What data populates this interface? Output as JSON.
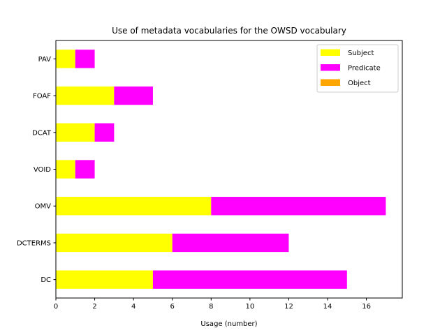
{
  "chart_data": {
    "type": "bar",
    "orientation": "horizontal",
    "stacked": true,
    "title": "Use of metadata vocabularies for the OWSD vocabulary",
    "xlabel": "Usage (number)",
    "ylabel": "",
    "categories": [
      "DC",
      "DCTERMS",
      "OMV",
      "VOID",
      "DCAT",
      "FOAF",
      "PAV"
    ],
    "series": [
      {
        "name": "Subject",
        "color": "#ffff00",
        "values": [
          5,
          6,
          8,
          1,
          2,
          3,
          1
        ]
      },
      {
        "name": "Predicate",
        "color": "#ff00ff",
        "values": [
          10,
          6,
          9,
          1,
          1,
          2,
          1
        ]
      },
      {
        "name": "Object",
        "color": "#ffa500",
        "values": [
          0,
          0,
          0,
          0,
          0,
          0,
          0
        ]
      }
    ],
    "xlim": [
      0,
      17.85
    ],
    "xticks": [
      0,
      2,
      4,
      6,
      8,
      10,
      12,
      14,
      16
    ],
    "grid": false,
    "legend_position": "top-right"
  }
}
